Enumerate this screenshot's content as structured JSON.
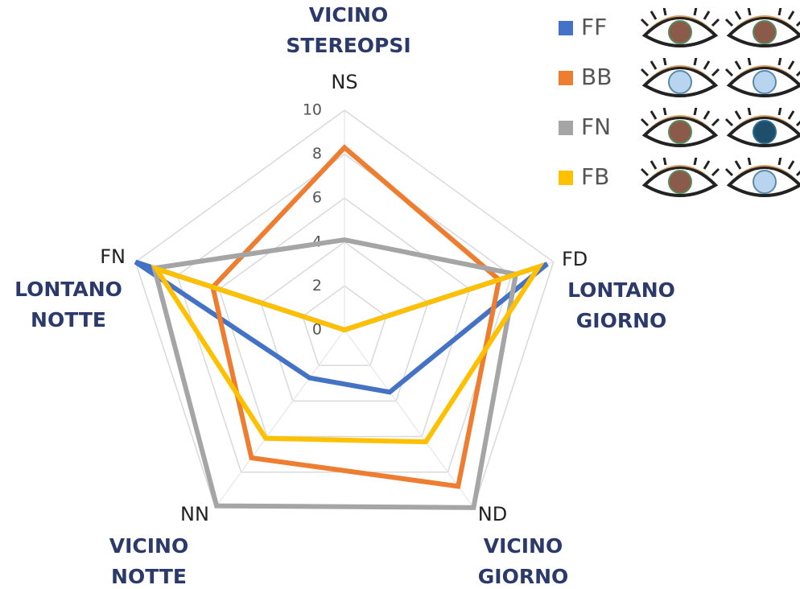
{
  "chart_data": {
    "type": "radar",
    "categories": [
      "NS",
      "FD",
      "ND",
      "NN",
      "FN"
    ],
    "annotations": [
      [
        "VICINO",
        "STEREOPSI"
      ],
      [
        "LONTANO",
        "GIORNO"
      ],
      [
        "VICINO",
        "GIORNO"
      ],
      [
        "VICINO",
        "NOTTE"
      ],
      [
        "LONTANO",
        "NOTTE"
      ]
    ],
    "ylim": [
      0,
      10
    ],
    "yticks": [
      0,
      2,
      4,
      6,
      8,
      10
    ],
    "grid": true,
    "series": [
      {
        "name": "FF",
        "color": "#4472c4",
        "values": [
          0,
          9.7,
          3.5,
          2.7,
          10
        ]
      },
      {
        "name": "BB",
        "color": "#ed7d31",
        "values": [
          8.3,
          7.4,
          8.8,
          7.2,
          6.3
        ]
      },
      {
        "name": "FN",
        "color": "#a5a5a5",
        "values": [
          4.1,
          8.2,
          10,
          9.9,
          9.1
        ]
      },
      {
        "name": "FB",
        "color": "#ffc000",
        "values": [
          0,
          9.3,
          6.3,
          6.1,
          9.0
        ]
      }
    ]
  }
}
